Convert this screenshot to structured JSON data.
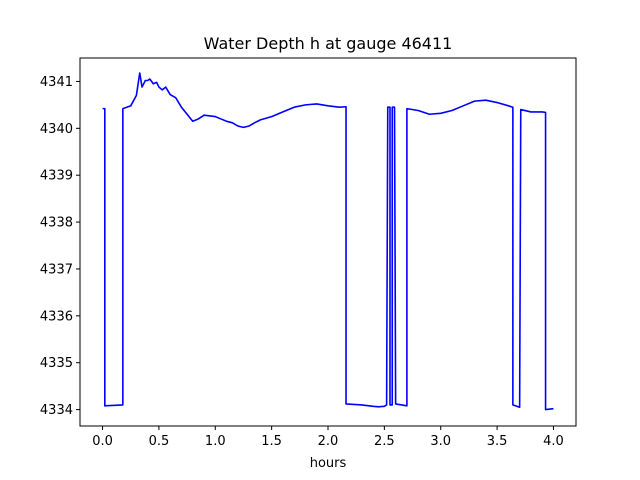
{
  "chart_data": {
    "type": "line",
    "title": "Water Depth h at gauge 46411",
    "xlabel": "hours",
    "ylabel": "",
    "xlim": [
      -0.2,
      4.2
    ],
    "ylim": [
      4333.65,
      4341.5
    ],
    "xticks": [
      0.0,
      0.5,
      1.0,
      1.5,
      2.0,
      2.5,
      3.0,
      3.5,
      4.0
    ],
    "xtick_labels": [
      "0.0",
      "0.5",
      "1.0",
      "1.5",
      "2.0",
      "2.5",
      "3.0",
      "3.5",
      "4.0"
    ],
    "yticks": [
      4334,
      4335,
      4336,
      4337,
      4338,
      4339,
      4340,
      4341
    ],
    "ytick_labels": [
      "4334",
      "4335",
      "4336",
      "4337",
      "4338",
      "4339",
      "4340",
      "4341"
    ],
    "grid": false,
    "series": [
      {
        "color": "#0000ff",
        "x": [
          0.0,
          0.02,
          0.02,
          0.18,
          0.18,
          0.25,
          0.3,
          0.33,
          0.35,
          0.38,
          0.4,
          0.42,
          0.45,
          0.48,
          0.5,
          0.53,
          0.56,
          0.6,
          0.65,
          0.7,
          0.75,
          0.8,
          0.85,
          0.9,
          1.0,
          1.05,
          1.1,
          1.15,
          1.2,
          1.25,
          1.3,
          1.35,
          1.4,
          1.5,
          1.6,
          1.7,
          1.8,
          1.9,
          2.0,
          2.1,
          2.16,
          2.16,
          2.3,
          2.4,
          2.45,
          2.5,
          2.52,
          2.53,
          2.55,
          2.55,
          2.57,
          2.57,
          2.59,
          2.6,
          2.6,
          2.7,
          2.7,
          2.8,
          2.9,
          3.0,
          3.1,
          3.2,
          3.3,
          3.4,
          3.5,
          3.6,
          3.64,
          3.64,
          3.7,
          3.71,
          3.8,
          3.9,
          3.93,
          3.93,
          4.0
        ],
        "y": [
          4340.42,
          4340.42,
          4334.08,
          4334.1,
          4340.42,
          4340.48,
          4340.7,
          4341.18,
          4340.88,
          4341.02,
          4341.02,
          4341.05,
          4340.95,
          4340.98,
          4340.88,
          4340.82,
          4340.88,
          4340.72,
          4340.65,
          4340.45,
          4340.3,
          4340.15,
          4340.2,
          4340.28,
          4340.25,
          4340.2,
          4340.15,
          4340.12,
          4340.05,
          4340.02,
          4340.05,
          4340.12,
          4340.18,
          4340.25,
          4340.35,
          4340.45,
          4340.5,
          4340.52,
          4340.48,
          4340.45,
          4340.46,
          4334.12,
          4334.1,
          4334.07,
          4334.06,
          4334.07,
          4334.1,
          4340.45,
          4340.45,
          4334.1,
          4334.1,
          4340.45,
          4340.45,
          4334.12,
          4334.12,
          4334.08,
          4340.42,
          4340.38,
          4340.3,
          4340.32,
          4340.38,
          4340.48,
          4340.58,
          4340.6,
          4340.55,
          4340.48,
          4340.45,
          4334.1,
          4334.05,
          4340.4,
          4340.35,
          4340.35,
          4340.34,
          4334.0,
          4334.02
        ]
      }
    ]
  }
}
